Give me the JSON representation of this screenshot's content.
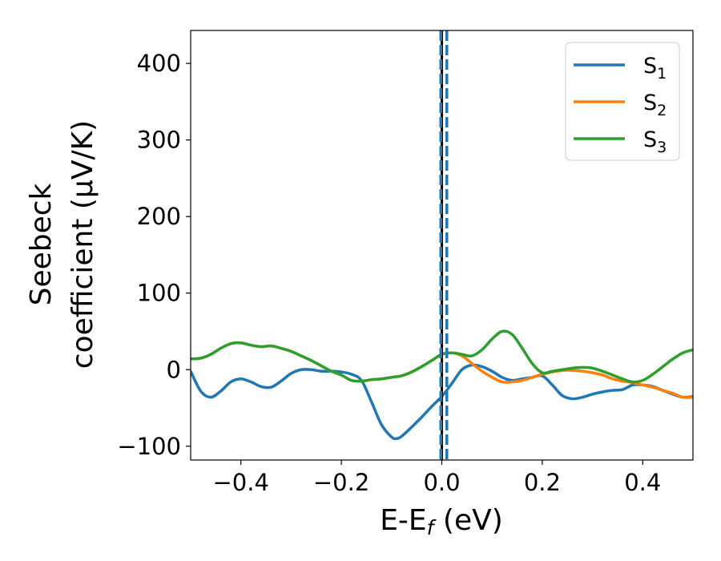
{
  "chart_data": {
    "type": "line",
    "xlabel": {
      "main": "E-E",
      "sub": "f",
      "unit": " (eV)"
    },
    "ylabel": {
      "line1": "Seebeck",
      "line2": "coefficient  (μV/K)"
    },
    "xlim": [
      -0.5,
      0.5
    ],
    "ylim": [
      -118,
      443
    ],
    "x_ticks": [
      -0.4,
      -0.2,
      0.0,
      0.2,
      0.4
    ],
    "x_tick_labels": [
      "−0.4",
      "−0.2",
      "0.0",
      "0.2",
      "0.4"
    ],
    "y_ticks": [
      -100,
      0,
      100,
      200,
      300,
      400
    ],
    "y_tick_labels": [
      "−100",
      "0",
      "100",
      "200",
      "300",
      "400"
    ],
    "grid": false,
    "legend_position": "top-right",
    "vertical_lines": [
      {
        "x": 0.0,
        "color": "#000000",
        "style": "solid"
      },
      {
        "x": -0.002,
        "color": "#1f77b4",
        "style": "dashed"
      },
      {
        "x": 0.01,
        "color": "#1f77b4",
        "style": "dashed"
      }
    ],
    "series": [
      {
        "name": "S",
        "sub": "1",
        "color": "#1f77b4",
        "x": [
          -0.5,
          -0.48,
          -0.46,
          -0.44,
          -0.42,
          -0.4,
          -0.38,
          -0.36,
          -0.34,
          -0.32,
          -0.3,
          -0.28,
          -0.26,
          -0.24,
          -0.22,
          -0.2,
          -0.18,
          -0.16,
          -0.14,
          -0.12,
          -0.1,
          -0.09,
          -0.08,
          -0.06,
          -0.04,
          -0.02,
          0.0,
          0.02,
          0.04,
          0.06,
          0.08,
          0.1,
          0.12,
          0.14,
          0.16,
          0.18,
          0.2,
          0.22,
          0.24,
          0.26,
          0.28,
          0.3,
          0.32,
          0.34,
          0.36,
          0.38,
          0.4,
          0.42,
          0.44,
          0.46,
          0.48,
          0.5
        ],
        "y": [
          -2,
          -28,
          -36,
          -28,
          -16,
          -12,
          -16,
          -22,
          -23,
          -15,
          -5,
          0,
          0,
          -2,
          -2,
          -3,
          -6,
          -14,
          -42,
          -72,
          -88,
          -90,
          -87,
          -75,
          -62,
          -48,
          -35,
          -18,
          0,
          6,
          4,
          -2,
          -10,
          -14,
          -12,
          -10,
          -8,
          -20,
          -34,
          -38,
          -36,
          -32,
          -29,
          -27,
          -26,
          -20,
          -20,
          -22,
          -27,
          -32,
          -36,
          -35
        ]
      },
      {
        "name": "S",
        "sub": "2",
        "color": "#ff7f0e",
        "x": [
          -0.5,
          -0.48,
          -0.46,
          -0.44,
          -0.42,
          -0.4,
          -0.38,
          -0.36,
          -0.34,
          -0.32,
          -0.3,
          -0.28,
          -0.26,
          -0.24,
          -0.22,
          -0.2,
          -0.18,
          -0.16,
          -0.14,
          -0.12,
          -0.1,
          -0.08,
          -0.06,
          -0.04,
          -0.02,
          0.0,
          0.02,
          0.04,
          0.06,
          0.08,
          0.1,
          0.12,
          0.14,
          0.16,
          0.18,
          0.2,
          0.22,
          0.24,
          0.26,
          0.28,
          0.3,
          0.32,
          0.34,
          0.36,
          0.38,
          0.4,
          0.42,
          0.44,
          0.46,
          0.48,
          0.5
        ],
        "y": [
          14,
          15,
          20,
          28,
          34,
          35,
          32,
          30,
          31,
          28,
          24,
          18,
          12,
          5,
          -2,
          -7,
          -14,
          -15,
          -13,
          -12,
          -10,
          -8,
          -3,
          4,
          12,
          20,
          22,
          18,
          8,
          -2,
          -10,
          -16,
          -16,
          -14,
          -10,
          -6,
          -3,
          -1,
          -1,
          -2,
          -4,
          -7,
          -12,
          -15,
          -17,
          -20,
          -23,
          -27,
          -31,
          -36,
          -36
        ]
      },
      {
        "name": "S",
        "sub": "3",
        "color": "#2ca02c",
        "x": [
          -0.5,
          -0.48,
          -0.46,
          -0.44,
          -0.42,
          -0.4,
          -0.38,
          -0.36,
          -0.34,
          -0.32,
          -0.3,
          -0.28,
          -0.26,
          -0.24,
          -0.22,
          -0.2,
          -0.18,
          -0.16,
          -0.14,
          -0.12,
          -0.1,
          -0.08,
          -0.06,
          -0.04,
          -0.02,
          0.0,
          0.02,
          0.04,
          0.06,
          0.08,
          0.1,
          0.12,
          0.14,
          0.16,
          0.18,
          0.2,
          0.22,
          0.24,
          0.26,
          0.28,
          0.3,
          0.32,
          0.34,
          0.36,
          0.38,
          0.4,
          0.42,
          0.44,
          0.46,
          0.48,
          0.5
        ],
        "y": [
          14,
          15,
          20,
          28,
          34,
          35,
          32,
          30,
          31,
          28,
          24,
          18,
          12,
          5,
          -2,
          -7,
          -14,
          -15,
          -13,
          -12,
          -10,
          -8,
          -3,
          4,
          12,
          20,
          22,
          20,
          18,
          26,
          40,
          50,
          46,
          28,
          8,
          -4,
          -2,
          0,
          2,
          3,
          2,
          -2,
          -7,
          -12,
          -16,
          -14,
          -6,
          4,
          14,
          22,
          26
        ]
      }
    ]
  }
}
